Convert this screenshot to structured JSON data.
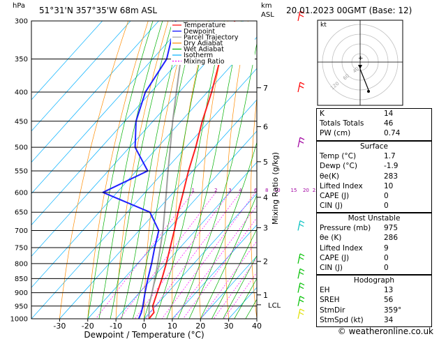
{
  "header": {
    "p_unit": "hPa",
    "location": "51°31'N  357°35'W  68m  ASL",
    "km_label": "km",
    "asl_label": "ASL",
    "datetime": "20.01.2023  00GMT  (Base: 12)"
  },
  "legend": [
    {
      "label": "Temperature",
      "color": "#ff0000",
      "dash": ""
    },
    {
      "label": "Dewpoint",
      "color": "#0000ff",
      "dash": ""
    },
    {
      "label": "Parcel Trajectory",
      "color": "#a0a0a0",
      "dash": ""
    },
    {
      "label": "Dry Adiabat",
      "color": "#ff8c00",
      "dash": ""
    },
    {
      "label": "Wet Adiabat",
      "color": "#00b000",
      "dash": ""
    },
    {
      "label": "Isotherm",
      "color": "#00b0ff",
      "dash": ""
    },
    {
      "label": "Mixing Ratio",
      "color": "#ff00ff",
      "dash": "2,2"
    }
  ],
  "chart_data": {
    "type": "skew-t",
    "xlabel": "Dewpoint / Temperature (°C)",
    "x_ticks": [
      -30,
      -20,
      -10,
      0,
      10,
      20,
      30,
      40
    ],
    "pressure_levels": [
      300,
      350,
      400,
      450,
      500,
      550,
      600,
      650,
      700,
      750,
      800,
      850,
      900,
      950,
      1000
    ],
    "plim": [
      300,
      1000
    ],
    "tlim": [
      -40,
      40
    ],
    "km_ticks": [
      {
        "km": "1",
        "p": 908
      },
      {
        "km": "2",
        "p": 793
      },
      {
        "km": "3",
        "p": 692
      },
      {
        "km": "4",
        "p": 612
      },
      {
        "km": "5",
        "p": 530
      },
      {
        "km": "6",
        "p": 460
      },
      {
        "km": "7",
        "p": 393
      }
    ],
    "lcl": {
      "label": "LCL",
      "p": 945
    },
    "mixing_ratio_label": "Mixing Ratio (g/kg)",
    "mixing_ratio_values": [
      {
        "label": "1",
        "w": 1
      },
      {
        "label": "2",
        "w": 2
      },
      {
        "label": "3",
        "w": 3
      },
      {
        "label": "4",
        "w": 4
      },
      {
        "label": "6",
        "w": 6
      },
      {
        "label": "8",
        "w": 8
      },
      {
        "label": "10",
        "w": 10
      },
      {
        "label": "15",
        "w": 15
      },
      {
        "label": "20",
        "w": 20
      },
      {
        "label": "25",
        "w": 25
      }
    ],
    "temperature": {
      "p": [
        1000,
        975,
        950,
        900,
        850,
        800,
        750,
        700,
        650,
        600,
        550,
        500,
        450,
        400,
        350,
        300
      ],
      "t": [
        1.7,
        1.5,
        -1.0,
        -3.7,
        -6.5,
        -9.8,
        -13.5,
        -17.5,
        -22,
        -26.5,
        -31.5,
        -36.5,
        -42.5,
        -48.5,
        -56,
        -63
      ]
    },
    "dewpoint": {
      "p": [
        1000,
        975,
        950,
        900,
        850,
        800,
        750,
        700,
        650,
        600,
        550,
        500,
        450,
        400,
        350,
        300
      ],
      "t": [
        -1.9,
        -3.0,
        -4.5,
        -8.0,
        -11.5,
        -15,
        -19,
        -23,
        -32,
        -55,
        -46,
        -58,
        -66,
        -72,
        -75,
        -84
      ]
    },
    "parcel": {
      "p": [
        1000,
        945,
        900,
        850,
        800,
        750,
        700,
        650,
        600,
        550,
        500,
        450,
        400,
        350,
        300
      ],
      "t": [
        1.7,
        -2.7,
        -5.5,
        -9,
        -12.8,
        -17,
        -21.5,
        -26.8,
        -32.5,
        -38.8,
        -45.5,
        -53,
        -61,
        -70,
        -80
      ]
    },
    "wind_barbs": [
      {
        "p": 1000,
        "color": "#e0e000"
      },
      {
        "p": 950,
        "color": "#00c000"
      },
      {
        "p": 900,
        "color": "#00c000"
      },
      {
        "p": 850,
        "color": "#00c000"
      },
      {
        "p": 800,
        "color": "#00c000"
      },
      {
        "p": 700,
        "color": "#00c0c0"
      },
      {
        "p": 500,
        "color": "#a000a0"
      },
      {
        "p": 400,
        "color": "#ff0000"
      },
      {
        "p": 300,
        "color": "#ff0000"
      }
    ]
  },
  "hodograph": {
    "unit_label": "kt",
    "ring_labels": [
      "40",
      "60",
      "120"
    ],
    "storm_marker_label": "+"
  },
  "indices": {
    "top": [
      {
        "label": "K",
        "value": "14"
      },
      {
        "label": "Totals Totals",
        "value": "46"
      },
      {
        "label": "PW (cm)",
        "value": "0.74"
      }
    ],
    "surface": {
      "title": "Surface",
      "rows": [
        {
          "label": "Temp (°C)",
          "value": "1.7"
        },
        {
          "label": "Dewp (°C)",
          "value": "-1.9"
        },
        {
          "label": "θe(K)",
          "value": "283"
        },
        {
          "label": "Lifted Index",
          "value": "10"
        },
        {
          "label": "CAPE (J)",
          "value": "0"
        },
        {
          "label": "CIN (J)",
          "value": "0"
        }
      ]
    },
    "most_unstable": {
      "title": "Most Unstable",
      "rows": [
        {
          "label": "Pressure (mb)",
          "value": "975"
        },
        {
          "label": "θe (K)",
          "value": "286"
        },
        {
          "label": "Lifted Index",
          "value": "9"
        },
        {
          "label": "CAPE (J)",
          "value": "0"
        },
        {
          "label": "CIN (J)",
          "value": "0"
        }
      ]
    },
    "hodograph": {
      "title": "Hodograph",
      "rows": [
        {
          "label": "EH",
          "value": "13"
        },
        {
          "label": "SREH",
          "value": "56"
        },
        {
          "label": "StmDir",
          "value": "359°"
        },
        {
          "label": "StmSpd (kt)",
          "value": "34"
        }
      ]
    }
  },
  "footer": "© weatheronline.co.uk"
}
